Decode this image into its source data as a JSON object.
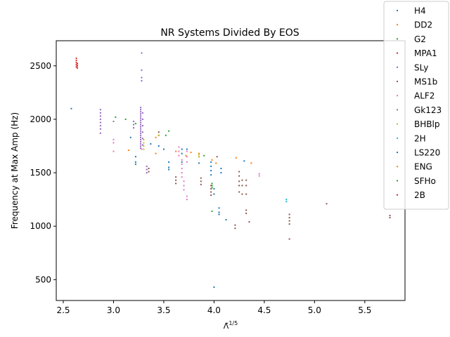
{
  "chart_data": {
    "type": "scatter",
    "title": "NR Systems Divided By EOS",
    "xlabel_base": "Λ̃",
    "xlabel_exp": "1/5",
    "ylabel": "Frequency at Max Amp (Hz)",
    "xlim": [
      2.43,
      5.9
    ],
    "ylim": [
      305,
      2735
    ],
    "xticks": [
      2.5,
      3.0,
      3.5,
      4.0,
      4.5,
      5.0,
      5.5
    ],
    "xtick_labels": [
      "2.5",
      "3.0",
      "3.5",
      "4.0",
      "4.5",
      "5.0",
      "5.5"
    ],
    "yticks": [
      500,
      1000,
      1500,
      2000,
      2500
    ],
    "ytick_labels": [
      "500",
      "1000",
      "1500",
      "2000",
      "2500"
    ],
    "grid": false,
    "legend_position": "upper-right-outside",
    "series": [
      {
        "name": "H4",
        "color": "#1f77b4",
        "points": [
          [
            2.58,
            2100
          ],
          [
            3.22,
            1650
          ],
          [
            3.22,
            1600
          ],
          [
            3.22,
            1580
          ],
          [
            3.55,
            1600
          ],
          [
            3.55,
            1550
          ],
          [
            3.55,
            1530
          ],
          [
            3.68,
            1720
          ],
          [
            3.68,
            1680
          ],
          [
            3.68,
            1600
          ],
          [
            3.97,
            1600
          ],
          [
            3.97,
            1560
          ],
          [
            3.97,
            1520
          ],
          [
            3.97,
            1480
          ],
          [
            4.0,
            1350
          ],
          [
            4.0,
            1300
          ],
          [
            4.05,
            1170
          ],
          [
            4.05,
            1130
          ],
          [
            4.05,
            1110
          ],
          [
            4.07,
            1540
          ],
          [
            4.07,
            1500
          ],
          [
            4.12,
            1060
          ],
          [
            4.0,
            430
          ],
          [
            4.3,
            1610
          ]
        ]
      },
      {
        "name": "DD2",
        "color": "#ff7f0e",
        "points": [
          [
            3.15,
            1710
          ],
          [
            3.42,
            1680
          ],
          [
            3.72,
            1660
          ],
          [
            3.85,
            1680
          ],
          [
            3.85,
            1650
          ],
          [
            3.98,
            1620
          ],
          [
            4.02,
            1590
          ],
          [
            4.22,
            1640
          ],
          [
            4.37,
            1590
          ]
        ]
      },
      {
        "name": "G2",
        "color": "#2ca02c",
        "points": [
          [
            3.02,
            2020
          ],
          [
            3.12,
            2000
          ],
          [
            3.52,
            1850
          ],
          [
            3.55,
            1890
          ],
          [
            3.98,
            1400
          ],
          [
            3.98,
            1380
          ],
          [
            3.98,
            1360
          ],
          [
            3.98,
            1140
          ]
        ]
      },
      {
        "name": "MPA1",
        "color": "#d62728",
        "points": [
          [
            2.63,
            2570
          ],
          [
            2.63,
            2550
          ],
          [
            2.63,
            2530
          ],
          [
            2.63,
            2510
          ],
          [
            2.63,
            2490
          ]
        ]
      },
      {
        "name": "SLy",
        "color": "#9467bd",
        "points": [
          [
            2.87,
            2090
          ],
          [
            2.87,
            2060
          ],
          [
            2.87,
            2030
          ],
          [
            2.87,
            2000
          ],
          [
            2.87,
            1970
          ],
          [
            2.87,
            1940
          ],
          [
            2.87,
            1910
          ],
          [
            2.87,
            1870
          ],
          [
            3.2,
            1980
          ],
          [
            3.2,
            1950
          ],
          [
            3.2,
            1920
          ],
          [
            3.28,
            2620
          ],
          [
            3.28,
            2460
          ],
          [
            3.28,
            2390
          ],
          [
            3.28,
            2360
          ],
          [
            3.27,
            2110
          ],
          [
            3.27,
            2090
          ],
          [
            3.27,
            2070
          ],
          [
            3.27,
            2050
          ],
          [
            3.27,
            2030
          ],
          [
            3.27,
            2010
          ],
          [
            3.27,
            1990
          ],
          [
            3.27,
            1970
          ],
          [
            3.27,
            1950
          ],
          [
            3.27,
            1930
          ],
          [
            3.27,
            1910
          ],
          [
            3.27,
            1890
          ],
          [
            3.27,
            1870
          ],
          [
            3.27,
            1850
          ],
          [
            3.27,
            1830
          ],
          [
            3.27,
            1810
          ],
          [
            3.27,
            1790
          ],
          [
            3.27,
            1770
          ],
          [
            3.27,
            1750
          ],
          [
            3.27,
            1730
          ],
          [
            3.29,
            2060
          ],
          [
            3.29,
            2000
          ],
          [
            3.29,
            1940
          ],
          [
            3.29,
            1880
          ],
          [
            3.29,
            1820
          ],
          [
            3.29,
            1760
          ],
          [
            3.33,
            1560
          ],
          [
            3.33,
            1530
          ],
          [
            3.33,
            1500
          ]
        ]
      },
      {
        "name": "MS1b",
        "color": "#8c564b",
        "points": [
          [
            3.35,
            1540
          ],
          [
            3.35,
            1510
          ],
          [
            3.45,
            1880
          ],
          [
            3.45,
            1850
          ],
          [
            3.62,
            1460
          ],
          [
            3.62,
            1430
          ],
          [
            3.62,
            1400
          ],
          [
            3.87,
            1450
          ],
          [
            3.87,
            1420
          ],
          [
            3.87,
            1390
          ],
          [
            3.97,
            1380
          ],
          [
            3.97,
            1350
          ],
          [
            3.97,
            1320
          ],
          [
            3.97,
            1290
          ],
          [
            4.03,
            1650
          ],
          [
            4.21,
            1010
          ],
          [
            4.21,
            980
          ],
          [
            4.25,
            1510
          ],
          [
            4.25,
            1470
          ],
          [
            4.25,
            1420
          ],
          [
            4.25,
            1380
          ],
          [
            4.25,
            1320
          ],
          [
            4.28,
            1430
          ],
          [
            4.28,
            1380
          ],
          [
            4.28,
            1300
          ],
          [
            4.32,
            1430
          ],
          [
            4.32,
            1380
          ],
          [
            4.32,
            1300
          ],
          [
            4.32,
            1150
          ],
          [
            4.32,
            1120
          ],
          [
            4.35,
            1040
          ],
          [
            4.75,
            1110
          ],
          [
            4.75,
            1080
          ],
          [
            4.75,
            1050
          ],
          [
            4.75,
            1020
          ],
          [
            4.75,
            880
          ],
          [
            5.12,
            1210
          ],
          [
            5.75,
            1100
          ],
          [
            5.75,
            1080
          ]
        ]
      },
      {
        "name": "ALF2",
        "color": "#e377c2",
        "points": [
          [
            3.0,
            1810
          ],
          [
            3.0,
            1780
          ],
          [
            3.0,
            1700
          ],
          [
            3.28,
            1720
          ],
          [
            3.65,
            1740
          ],
          [
            3.65,
            1700
          ],
          [
            3.65,
            1660
          ],
          [
            3.68,
            1620
          ],
          [
            3.68,
            1580
          ],
          [
            3.68,
            1540
          ],
          [
            3.68,
            1500
          ],
          [
            3.68,
            1460
          ],
          [
            3.7,
            1420
          ],
          [
            3.7,
            1380
          ],
          [
            3.7,
            1340
          ],
          [
            3.73,
            1700
          ],
          [
            3.73,
            1650
          ],
          [
            3.73,
            1600
          ],
          [
            3.73,
            1280
          ],
          [
            3.73,
            1250
          ],
          [
            4.45,
            1490
          ],
          [
            4.45,
            1470
          ]
        ]
      },
      {
        "name": "Gk123",
        "color": "#7f7f7f",
        "points": [
          [
            3.0,
            1980
          ]
        ]
      },
      {
        "name": "BHBlp",
        "color": "#bcbd22",
        "points": [
          [
            3.3,
            1810
          ],
          [
            3.3,
            1780
          ],
          [
            3.3,
            1750
          ],
          [
            3.3,
            1720
          ],
          [
            3.45,
            1850
          ],
          [
            3.85,
            1670
          ],
          [
            3.85,
            1650
          ]
        ]
      },
      {
        "name": "2H",
        "color": "#17becf",
        "points": [
          [
            4.72,
            1250
          ],
          [
            4.72,
            1230
          ]
        ]
      },
      {
        "name": "LS220",
        "color": "#1f77b4",
        "points": [
          [
            3.17,
            1830
          ],
          [
            3.37,
            1770
          ],
          [
            3.45,
            1750
          ],
          [
            3.5,
            1720
          ],
          [
            3.73,
            1720
          ],
          [
            3.85,
            1590
          ]
        ]
      },
      {
        "name": "ENG",
        "color": "#ff7f0e",
        "points": [
          [
            3.42,
            1830
          ],
          [
            3.62,
            1700
          ],
          [
            3.77,
            1690
          ]
        ]
      },
      {
        "name": "SFHo",
        "color": "#2ca02c",
        "points": [
          [
            3.22,
            1960
          ],
          [
            3.9,
            1660
          ]
        ]
      },
      {
        "name": "2B",
        "color": "#d62728",
        "points": [
          [
            2.64,
            2520
          ],
          [
            2.64,
            2500
          ],
          [
            2.64,
            2480
          ]
        ]
      }
    ]
  }
}
